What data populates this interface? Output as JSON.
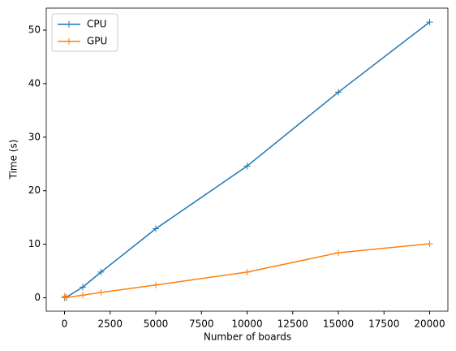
{
  "chart_data": {
    "type": "line",
    "x": [
      10,
      100,
      1000,
      2000,
      5000,
      10000,
      15000,
      20000
    ],
    "series": [
      {
        "name": "CPU",
        "color": "#1f77b4",
        "values": [
          0.01,
          0.1,
          2.0,
          4.8,
          12.9,
          24.6,
          38.4,
          51.5
        ]
      },
      {
        "name": "GPU",
        "color": "#ff7f0e",
        "values": [
          0.3,
          0.05,
          0.5,
          1.0,
          2.4,
          4.8,
          8.4,
          10.1
        ]
      }
    ],
    "xlabel": "Number of boards",
    "ylabel": "Time (s)",
    "xlim": [
      -1000,
      21000
    ],
    "ylim": [
      -2.5,
      54.1
    ],
    "xticks": [
      0,
      2500,
      5000,
      7500,
      10000,
      12500,
      15000,
      17500,
      20000
    ],
    "yticks": [
      0,
      10,
      20,
      30,
      40,
      50
    ],
    "legend": "upper-left",
    "marker": "+"
  }
}
